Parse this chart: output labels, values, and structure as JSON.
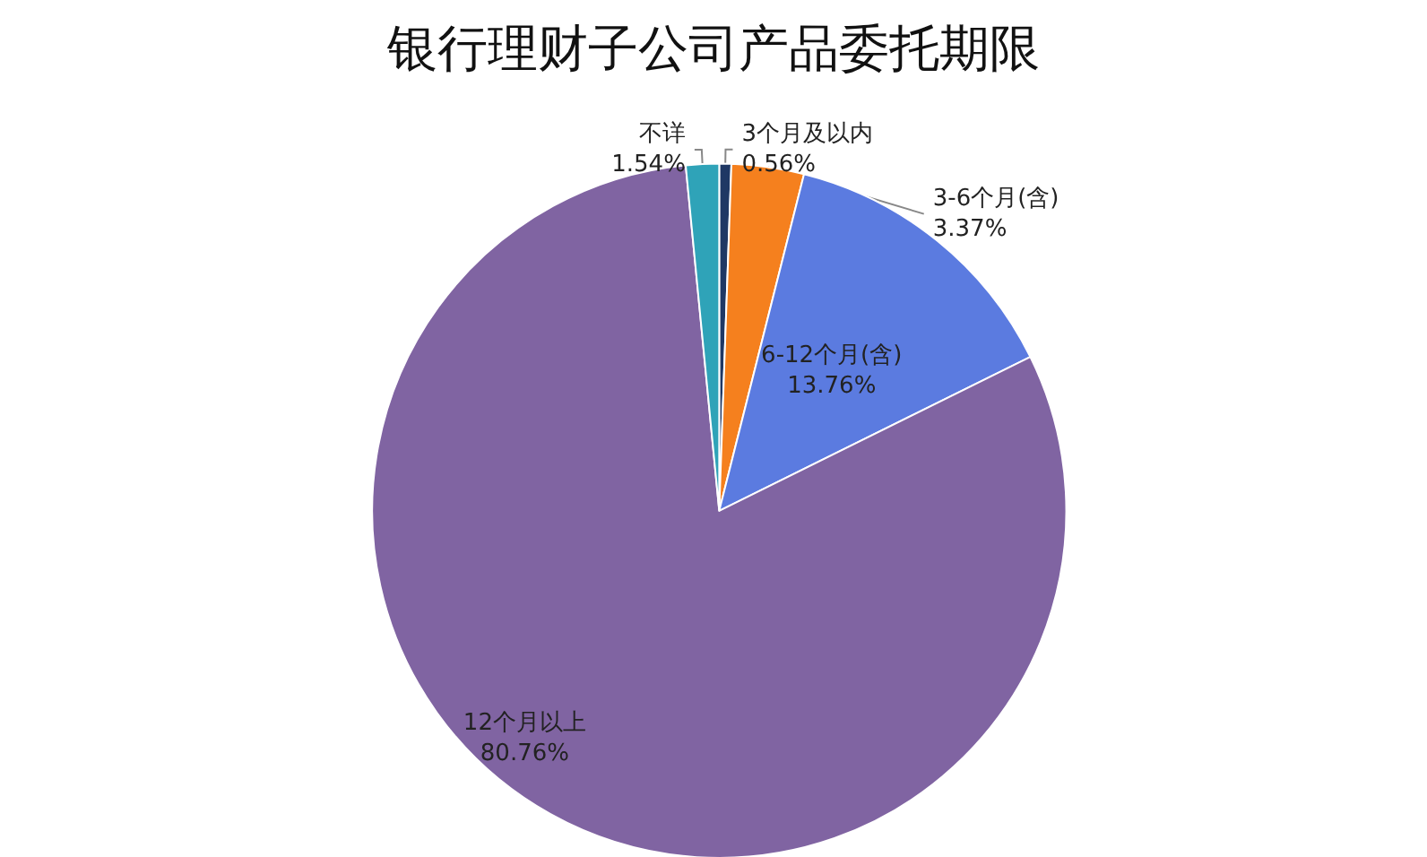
{
  "chart_data": {
    "type": "pie",
    "title": "银行理财子公司产品委托期限",
    "categories": [
      "3个月及以内",
      "3-6个月(含)",
      "6-12个月(含)",
      "12个月以上",
      "不详"
    ],
    "values": [
      0.56,
      3.37,
      13.76,
      80.76,
      1.54
    ],
    "colors": [
      "#1f3864",
      "#f5801e",
      "#5b7be0",
      "#8064a2",
      "#2fa3b8"
    ],
    "value_labels": [
      "0.56%",
      "3.37%",
      "13.76%",
      "80.76%",
      "1.54%"
    ],
    "legend": false
  }
}
